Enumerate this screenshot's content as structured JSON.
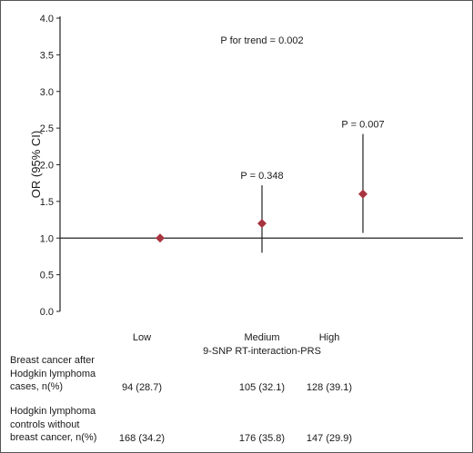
{
  "chart_data": {
    "type": "scatter",
    "title": "",
    "xlabel": "9-SNP RT-interaction-PRS",
    "ylabel": "OR (95% CI)",
    "ylim": [
      0,
      4
    ],
    "yticks": [
      "0.0",
      "0.5",
      "1.0",
      "1.5",
      "2.0",
      "2.5",
      "3.0",
      "3.5",
      "4.0"
    ],
    "reference_line": 1.0,
    "annotation": "P for trend = 0.002",
    "categories": [
      "Low",
      "Medium",
      "High"
    ],
    "points": [
      {
        "category": "Low",
        "or": 1.0,
        "ci_low": 1.0,
        "ci_high": 1.0,
        "p_label": ""
      },
      {
        "category": "Medium",
        "or": 1.2,
        "ci_low": 0.8,
        "ci_high": 1.72,
        "p_label": "P = 0.348"
      },
      {
        "category": "High",
        "or": 1.6,
        "ci_low": 1.07,
        "ci_high": 2.42,
        "p_label": "P = 0.007"
      }
    ],
    "marker_color": "#a8343f"
  },
  "table": {
    "rows": [
      {
        "label_lines": [
          "Breast cancer after",
          "Hodgkin lymphoma",
          "cases, n(%)"
        ],
        "values": [
          "94 (28.7)",
          "105 (32.1)",
          "128 (39.1)"
        ]
      },
      {
        "label_lines": [
          "Hodgkin lymphoma",
          "controls without",
          "breast cancer, n(%)"
        ],
        "values": [
          "168 (34.2)",
          "176 (35.8)",
          "147 (29.9)"
        ]
      }
    ]
  }
}
